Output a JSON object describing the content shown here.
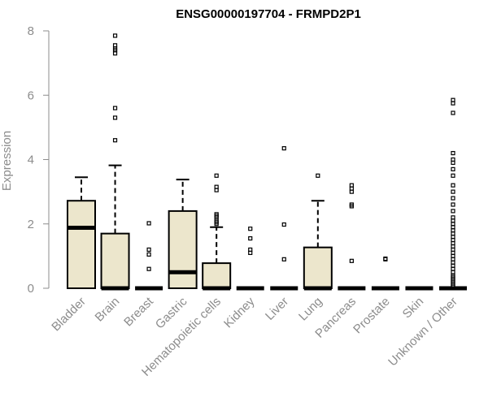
{
  "chart_data": {
    "type": "boxplot",
    "title": "ENSG00000197704 - FRMPD2P1",
    "ylabel": "Expression",
    "xlabel": "",
    "ylim": [
      0,
      8
    ],
    "yticks": [
      0,
      2,
      4,
      6,
      8
    ],
    "grid": false,
    "box_color": "#ece6cc",
    "categories": [
      "Bladder",
      "Brain",
      "Breast",
      "Gastric",
      "Hematopoietic cells",
      "Kidney",
      "Liver",
      "Lung",
      "Pancreas",
      "Prostate",
      "Skin",
      "Unknown / Other"
    ],
    "boxes": [
      {
        "q1": 0,
        "median": 1.88,
        "q3": 2.72,
        "whisker_low": 0,
        "whisker_high": 3.45,
        "outliers": []
      },
      {
        "q1": 0,
        "median": 0,
        "q3": 1.7,
        "whisker_low": 0,
        "whisker_high": 3.82,
        "outliers": [
          4.6,
          5.3,
          5.6,
          7.3,
          7.4,
          7.45,
          7.55,
          7.85
        ]
      },
      {
        "q1": 0,
        "median": 0,
        "q3": 0,
        "whisker_low": 0,
        "whisker_high": 0,
        "outliers": [
          0.6,
          1.05,
          1.2,
          2.02
        ]
      },
      {
        "q1": 0,
        "median": 0.5,
        "q3": 2.4,
        "whisker_low": 0,
        "whisker_high": 3.38,
        "outliers": []
      },
      {
        "q1": 0,
        "median": 0,
        "q3": 0.78,
        "whisker_low": 0,
        "whisker_high": 1.9,
        "outliers": [
          2.0,
          2.05,
          2.1,
          2.2,
          2.25,
          2.3,
          3.05,
          3.15,
          3.5
        ]
      },
      {
        "q1": 0,
        "median": 0,
        "q3": 0,
        "whisker_low": 0,
        "whisker_high": 0,
        "outliers": [
          1.1,
          1.2,
          1.55,
          1.85
        ]
      },
      {
        "q1": 0,
        "median": 0,
        "q3": 0,
        "whisker_low": 0,
        "whisker_high": 0,
        "outliers": [
          0.9,
          1.98,
          4.35
        ]
      },
      {
        "q1": 0,
        "median": 0,
        "q3": 1.27,
        "whisker_low": 0,
        "whisker_high": 2.72,
        "outliers": [
          3.5
        ]
      },
      {
        "q1": 0,
        "median": 0,
        "q3": 0,
        "whisker_low": 0,
        "whisker_high": 0,
        "outliers": [
          0.85,
          2.55,
          2.6,
          3.0,
          3.1,
          3.2
        ]
      },
      {
        "q1": 0,
        "median": 0,
        "q3": 0,
        "whisker_low": 0,
        "whisker_high": 0,
        "outliers": [
          0.9,
          0.92
        ]
      },
      {
        "q1": 0,
        "median": 0,
        "q3": 0,
        "whisker_low": 0,
        "whisker_high": 0,
        "outliers": []
      },
      {
        "q1": 0,
        "median": 0,
        "q3": 0,
        "whisker_low": 0,
        "whisker_high": 0,
        "outliers": [
          0.05,
          0.1,
          0.15,
          0.2,
          0.25,
          0.3,
          0.35,
          0.4,
          0.5,
          0.6,
          0.7,
          0.8,
          0.9,
          1.0,
          1.1,
          1.2,
          1.3,
          1.4,
          1.5,
          1.6,
          1.7,
          1.8,
          1.9,
          2.0,
          2.1,
          2.2,
          2.4,
          2.6,
          2.8,
          3.0,
          3.2,
          3.5,
          3.7,
          3.9,
          4.0,
          4.2,
          5.45,
          5.75,
          5.85
        ]
      }
    ]
  }
}
